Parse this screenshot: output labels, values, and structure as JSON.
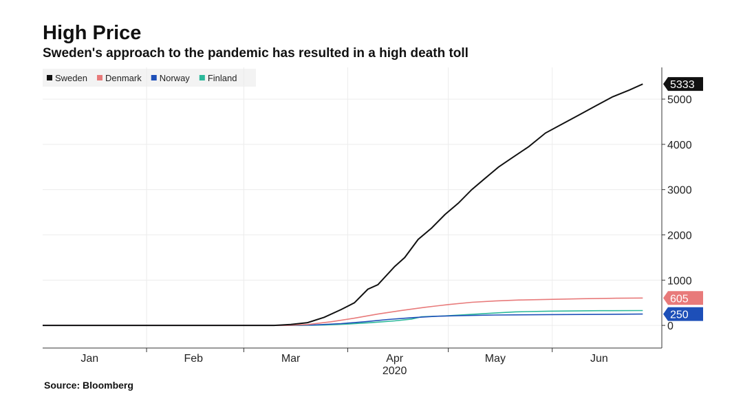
{
  "title": "High Price",
  "subtitle": "Sweden's approach to the pandemic has resulted in a high death toll",
  "source": "Source: Bloomberg",
  "colors": {
    "Sweden": "#111111",
    "Denmark": "#e87a7a",
    "Norway": "#1d4fb8",
    "Finland": "#2bb89a"
  },
  "chart_data": {
    "type": "line",
    "x_axis": {
      "ticks": [
        "Jan",
        "Feb",
        "Mar",
        "Apr",
        "May",
        "Jun"
      ],
      "tick_dates": [
        "2020-01-15",
        "2020-02-15",
        "2020-03-15",
        "2020-04-15",
        "2020-05-15",
        "2020-06-15"
      ],
      "year_label": "2020",
      "range": [
        "2020-01-01",
        "2020-06-30"
      ]
    },
    "y_axis": {
      "ticks": [
        0,
        1000,
        2000,
        3000,
        4000,
        5000
      ],
      "range": [
        -500,
        5700
      ],
      "position": "right"
    },
    "grid": true,
    "legend": {
      "placement": "top-left"
    },
    "series": [
      {
        "name": "Sweden",
        "last_label": "5333",
        "points": [
          [
            "2020-01-01",
            0
          ],
          [
            "2020-03-10",
            0
          ],
          [
            "2020-03-15",
            20
          ],
          [
            "2020-03-20",
            60
          ],
          [
            "2020-03-25",
            180
          ],
          [
            "2020-03-30",
            350
          ],
          [
            "2020-04-03",
            500
          ],
          [
            "2020-04-07",
            800
          ],
          [
            "2020-04-10",
            900
          ],
          [
            "2020-04-15",
            1300
          ],
          [
            "2020-04-18",
            1500
          ],
          [
            "2020-04-22",
            1900
          ],
          [
            "2020-04-26",
            2150
          ],
          [
            "2020-04-30",
            2450
          ],
          [
            "2020-05-04",
            2700
          ],
          [
            "2020-05-08",
            3000
          ],
          [
            "2020-05-12",
            3250
          ],
          [
            "2020-05-16",
            3500
          ],
          [
            "2020-05-20",
            3700
          ],
          [
            "2020-05-25",
            3950
          ],
          [
            "2020-05-30",
            4250
          ],
          [
            "2020-06-04",
            4450
          ],
          [
            "2020-06-09",
            4650
          ],
          [
            "2020-06-14",
            4850
          ],
          [
            "2020-06-19",
            5050
          ],
          [
            "2020-06-24",
            5200
          ],
          [
            "2020-06-28",
            5333
          ]
        ]
      },
      {
        "name": "Denmark",
        "last_label": "605",
        "points": [
          [
            "2020-01-01",
            0
          ],
          [
            "2020-03-14",
            0
          ],
          [
            "2020-03-20",
            20
          ],
          [
            "2020-03-27",
            80
          ],
          [
            "2020-04-03",
            160
          ],
          [
            "2020-04-10",
            250
          ],
          [
            "2020-04-17",
            330
          ],
          [
            "2020-04-24",
            400
          ],
          [
            "2020-05-01",
            460
          ],
          [
            "2020-05-08",
            510
          ],
          [
            "2020-05-15",
            540
          ],
          [
            "2020-05-22",
            560
          ],
          [
            "2020-05-31",
            575
          ],
          [
            "2020-06-10",
            590
          ],
          [
            "2020-06-20",
            600
          ],
          [
            "2020-06-28",
            605
          ]
        ]
      },
      {
        "name": "Norway",
        "last_label": "250",
        "points": [
          [
            "2020-01-01",
            0
          ],
          [
            "2020-03-14",
            0
          ],
          [
            "2020-03-22",
            10
          ],
          [
            "2020-03-30",
            40
          ],
          [
            "2020-04-06",
            80
          ],
          [
            "2020-04-13",
            130
          ],
          [
            "2020-04-20",
            170
          ],
          [
            "2020-04-27",
            200
          ],
          [
            "2020-05-04",
            215
          ],
          [
            "2020-05-15",
            230
          ],
          [
            "2020-05-31",
            238
          ],
          [
            "2020-06-15",
            243
          ],
          [
            "2020-06-28",
            250
          ]
        ]
      },
      {
        "name": "Finland",
        "last_label": "",
        "points": [
          [
            "2020-01-01",
            0
          ],
          [
            "2020-03-18",
            0
          ],
          [
            "2020-03-25",
            10
          ],
          [
            "2020-04-01",
            30
          ],
          [
            "2020-04-08",
            60
          ],
          [
            "2020-04-15",
            100
          ],
          [
            "2020-04-20",
            140
          ],
          [
            "2020-04-23",
            190
          ],
          [
            "2020-04-30",
            210
          ],
          [
            "2020-05-07",
            240
          ],
          [
            "2020-05-14",
            270
          ],
          [
            "2020-05-21",
            300
          ],
          [
            "2020-05-31",
            315
          ],
          [
            "2020-06-15",
            325
          ],
          [
            "2020-06-28",
            328
          ]
        ]
      }
    ]
  }
}
